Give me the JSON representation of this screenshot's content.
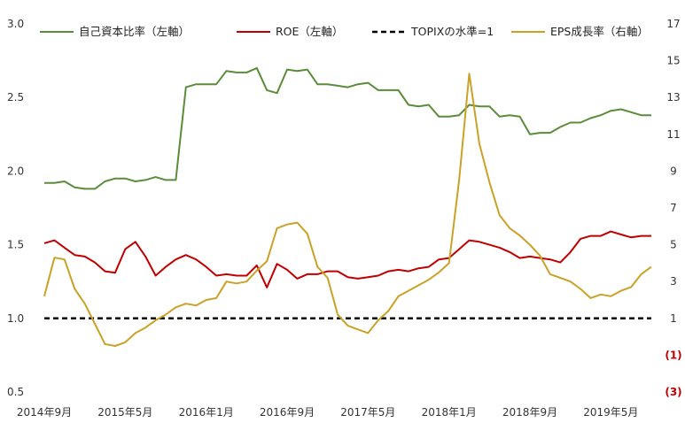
{
  "chart_data": {
    "type": "line",
    "title": "",
    "xlabel": "",
    "ylabel": "",
    "legend_position": "top",
    "grid": false,
    "x_tick_labels": [
      "2014年9月",
      "2015年5月",
      "2016年1月",
      "2016年9月",
      "2017年5月",
      "2018年1月",
      "2018年9月",
      "2019年5月"
    ],
    "y_left": {
      "range": [
        0.5,
        3.0
      ],
      "ticks": [
        "0.5",
        "1.0",
        "1.5",
        "2.0",
        "2.5",
        "3.0"
      ]
    },
    "y_right": {
      "range": [
        -3,
        17
      ],
      "ticks": [
        "(3)",
        "(1)",
        "1",
        "3",
        "5",
        "7",
        "9",
        "11",
        "13",
        "15",
        "17"
      ]
    },
    "series": [
      {
        "name": "自己資本比率（左軸）",
        "axis": "left",
        "color": "#5b8c3a",
        "dash": "",
        "values": [
          1.92,
          1.92,
          1.93,
          1.89,
          1.88,
          1.88,
          1.93,
          1.95,
          1.95,
          1.93,
          1.94,
          1.96,
          1.94,
          1.94,
          2.57,
          2.59,
          2.59,
          2.59,
          2.68,
          2.67,
          2.67,
          2.7,
          2.55,
          2.53,
          2.69,
          2.68,
          2.69,
          2.59,
          2.59,
          2.58,
          2.57,
          2.59,
          2.6,
          2.55,
          2.55,
          2.55,
          2.45,
          2.44,
          2.45,
          2.37,
          2.37,
          2.38,
          2.45,
          2.44,
          2.44,
          2.37,
          2.38,
          2.37,
          2.25,
          2.26,
          2.26,
          2.3,
          2.33,
          2.33,
          2.36,
          2.38,
          2.41,
          2.42,
          2.4,
          2.38,
          2.38
        ]
      },
      {
        "name": "ROE（左軸）",
        "axis": "left",
        "color": "#c00000",
        "dash": "",
        "values": [
          1.51,
          1.53,
          1.48,
          1.43,
          1.42,
          1.38,
          1.32,
          1.31,
          1.47,
          1.52,
          1.42,
          1.29,
          1.35,
          1.4,
          1.43,
          1.4,
          1.35,
          1.29,
          1.3,
          1.29,
          1.29,
          1.36,
          1.21,
          1.37,
          1.33,
          1.27,
          1.3,
          1.3,
          1.32,
          1.32,
          1.28,
          1.27,
          1.28,
          1.29,
          1.32,
          1.33,
          1.32,
          1.34,
          1.35,
          1.4,
          1.41,
          1.47,
          1.53,
          1.52,
          1.5,
          1.48,
          1.45,
          1.41,
          1.42,
          1.41,
          1.4,
          1.38,
          1.45,
          1.54,
          1.56,
          1.56,
          1.59,
          1.57,
          1.55,
          1.56,
          1.56
        ]
      },
      {
        "name": "TOPIXの水準=1",
        "axis": "left",
        "color": "#000000",
        "dash": "6,4",
        "values": [
          1,
          1,
          1,
          1,
          1,
          1,
          1,
          1,
          1,
          1,
          1,
          1,
          1,
          1,
          1,
          1,
          1,
          1,
          1,
          1,
          1,
          1,
          1,
          1,
          1,
          1,
          1,
          1,
          1,
          1,
          1,
          1,
          1,
          1,
          1,
          1,
          1,
          1,
          1,
          1,
          1,
          1,
          1,
          1,
          1,
          1,
          1,
          1,
          1,
          1,
          1,
          1,
          1,
          1,
          1,
          1,
          1,
          1,
          1,
          1,
          1
        ]
      },
      {
        "name": "EPS成長率（右軸）",
        "axis": "right",
        "color": "#c9a227",
        "dash": "",
        "values": [
          2.2,
          4.3,
          4.2,
          2.6,
          1.8,
          0.7,
          -0.4,
          -0.5,
          -0.3,
          0.2,
          0.5,
          0.9,
          1.2,
          1.6,
          1.8,
          1.7,
          2.0,
          2.1,
          3.0,
          2.9,
          3.0,
          3.6,
          4.1,
          5.9,
          6.1,
          6.2,
          5.6,
          3.8,
          3.2,
          1.2,
          0.6,
          0.4,
          0.2,
          0.9,
          1.4,
          2.2,
          2.5,
          2.8,
          3.1,
          3.5,
          4.0,
          8.5,
          14.3,
          10.5,
          8.4,
          6.6,
          5.9,
          5.5,
          5.0,
          4.4,
          3.4,
          3.2,
          3.0,
          2.6,
          2.1,
          2.3,
          2.2,
          2.5,
          2.7,
          3.4,
          3.8
        ]
      }
    ]
  }
}
